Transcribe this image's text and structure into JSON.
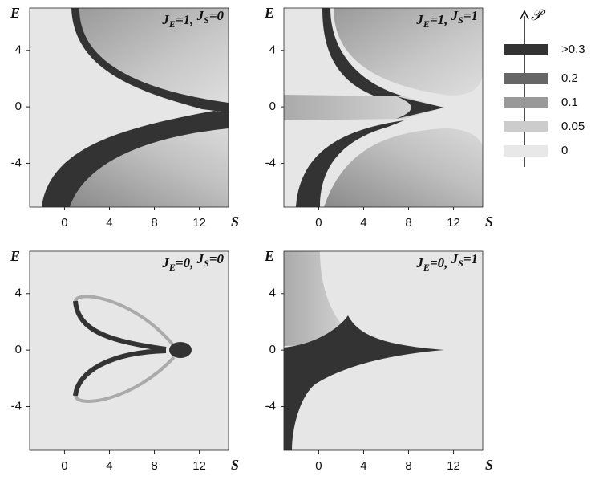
{
  "chart_data": [
    {
      "type": "heatmap",
      "title": [
        "J",
        "E",
        "=1, ",
        "J",
        "S",
        "=0"
      ],
      "xlabel": "S",
      "ylabel": "E",
      "xlim": [
        -3.1,
        14.6
      ],
      "ylim": [
        -7.1,
        7
      ],
      "xticks": [
        0,
        4,
        8,
        12
      ],
      "yticks": [
        -4,
        0,
        4
      ]
    },
    {
      "type": "heatmap",
      "title": [
        "J",
        "E",
        "=1, ",
        "J",
        "S",
        "=1"
      ],
      "xlabel": "S",
      "ylabel": "E",
      "xlim": [
        -3.1,
        14.6
      ],
      "ylim": [
        -7.1,
        7
      ],
      "xticks": [
        0,
        4,
        8,
        12
      ],
      "yticks": [
        -4,
        0,
        4
      ]
    },
    {
      "type": "heatmap",
      "title": [
        "J",
        "E",
        "=0, ",
        "J",
        "S",
        "=0"
      ],
      "xlabel": "S",
      "ylabel": "E",
      "xlim": [
        -3.1,
        14.6
      ],
      "ylim": [
        -7.1,
        7
      ],
      "xticks": [
        0,
        4,
        8,
        12
      ],
      "yticks": [
        -4,
        0,
        4
      ]
    },
    {
      "type": "heatmap",
      "title": [
        "J",
        "E",
        "=0, ",
        "J",
        "S",
        "=1"
      ],
      "xlabel": "S",
      "ylabel": "E",
      "xlim": [
        -3.1,
        14.6
      ],
      "ylim": [
        -7.1,
        7
      ],
      "xticks": [
        0,
        4,
        8,
        12
      ],
      "yticks": [
        -4,
        0,
        4
      ]
    }
  ],
  "colorbar": {
    "label": "𝒫",
    "levels": [
      {
        "value": 0.3,
        "label": ">0.3"
      },
      0.2,
      0.1,
      0.05,
      0
    ],
    "colors": [
      "#333333",
      "#666666",
      "#999999",
      "#cccccc",
      "#e8e8e8"
    ]
  }
}
